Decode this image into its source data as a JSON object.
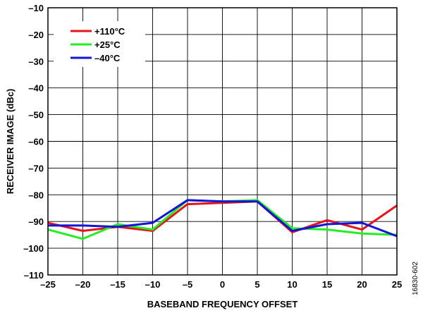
{
  "figure_id": "16830-602",
  "chart_data": {
    "type": "line",
    "title": "",
    "xlabel": "BASEBAND FREQUENCY OFFSET",
    "ylabel": "RECEIVER IMAGE (dBc)",
    "xlim": [
      -25,
      25
    ],
    "ylim": [
      -110,
      -10
    ],
    "x_ticks": [
      -25,
      -20,
      -15,
      -10,
      -5,
      0,
      5,
      10,
      15,
      20,
      25
    ],
    "x_tick_labels": [
      "–25",
      "–20",
      "–15",
      "–10",
      "–5",
      "0",
      "5",
      "10",
      "15",
      "20",
      "25"
    ],
    "y_ticks": [
      -10,
      -20,
      -30,
      -40,
      -50,
      -60,
      -70,
      -80,
      -90,
      -100,
      -110
    ],
    "y_tick_labels": [
      "–10",
      "–20",
      "–30",
      "–40",
      "–50",
      "–60",
      "–70",
      "–80",
      "–90",
      "–100",
      "–110"
    ],
    "grid": true,
    "legend_position": "top-left",
    "series": [
      {
        "name": "+110°C",
        "color": "#e8141c",
        "x": [
          -25,
          -20,
          -15,
          -10,
          -5,
          0,
          5,
          10,
          15,
          20,
          25
        ],
        "y": [
          -90.5,
          -93.5,
          -92,
          -93.5,
          -83.5,
          -83,
          -82.5,
          -94,
          -89.5,
          -93,
          -84
        ]
      },
      {
        "name": "+25°C",
        "color": "#22ee22",
        "x": [
          -25,
          -20,
          -15,
          -10,
          -5,
          0,
          5,
          10,
          15,
          20,
          25
        ],
        "y": [
          -93,
          -96.5,
          -91,
          -93,
          -82,
          -82.5,
          -82,
          -92.5,
          -93,
          -94.5,
          -95
        ]
      },
      {
        "name": "–40°C",
        "color": "#1414d8",
        "x": [
          -25,
          -20,
          -15,
          -10,
          -5,
          0,
          5,
          10,
          15,
          20,
          25
        ],
        "y": [
          -91.5,
          -91.5,
          -92,
          -90.5,
          -82,
          -82.5,
          -82.5,
          -93.5,
          -91,
          -90.5,
          -95.5
        ]
      }
    ]
  }
}
